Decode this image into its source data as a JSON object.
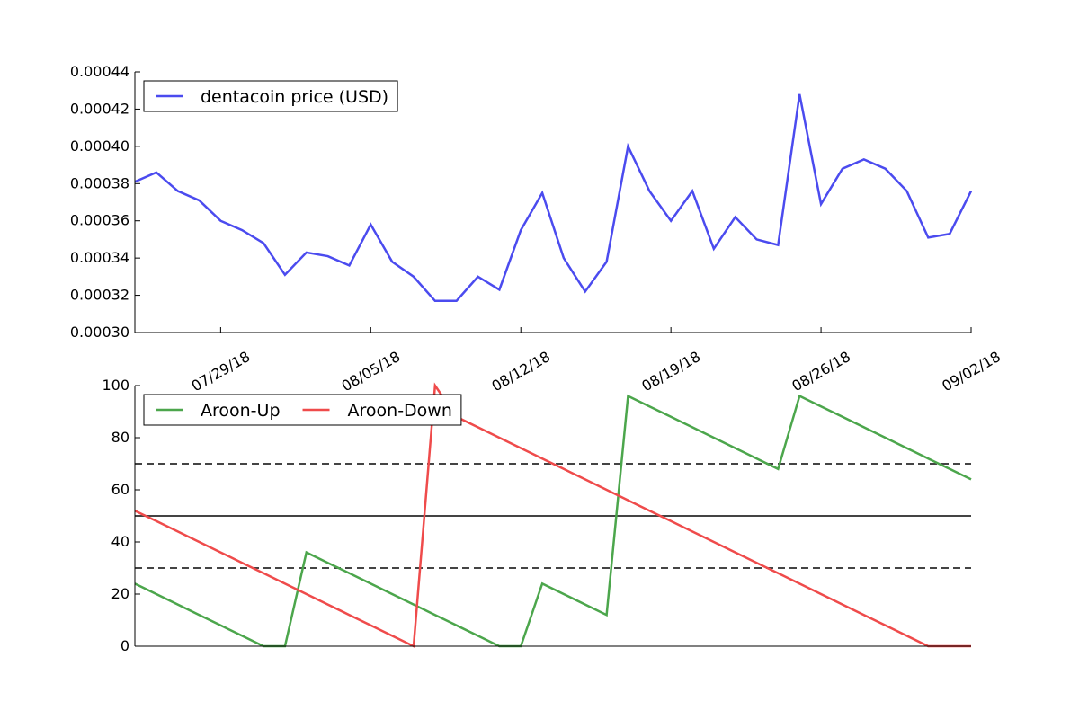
{
  "chart_data": [
    {
      "type": "line",
      "title": "",
      "xlabel": "",
      "ylabel": "",
      "x": [
        "2018-07-25",
        "2018-07-26",
        "2018-07-27",
        "2018-07-28",
        "2018-07-29",
        "2018-07-30",
        "2018-07-31",
        "2018-08-01",
        "2018-08-02",
        "2018-08-03",
        "2018-08-04",
        "2018-08-05",
        "2018-08-06",
        "2018-08-07",
        "2018-08-08",
        "2018-08-09",
        "2018-08-10",
        "2018-08-11",
        "2018-08-12",
        "2018-08-13",
        "2018-08-14",
        "2018-08-15",
        "2018-08-16",
        "2018-08-17",
        "2018-08-18",
        "2018-08-19",
        "2018-08-20",
        "2018-08-21",
        "2018-08-22",
        "2018-08-23",
        "2018-08-24",
        "2018-08-25",
        "2018-08-26",
        "2018-08-27",
        "2018-08-28",
        "2018-08-29",
        "2018-08-30",
        "2018-08-31",
        "2018-09-01",
        "2018-09-02"
      ],
      "xlim": [
        "2018-07-25",
        "2018-09-02"
      ],
      "xticks": [
        "2018-07-29",
        "2018-08-05",
        "2018-08-12",
        "2018-08-19",
        "2018-08-26",
        "2018-09-02"
      ],
      "xtick_labels": [
        "07/29/18",
        "08/05/18",
        "08/12/18",
        "08/19/18",
        "08/26/18",
        "09/02/18"
      ],
      "ylim": [
        0.0003,
        0.00044
      ],
      "yticks": [
        0.0003,
        0.00032,
        0.00034,
        0.00036,
        0.00038,
        0.0004,
        0.00042,
        0.00044
      ],
      "ytick_labels": [
        "0.00030",
        "0.00032",
        "0.00034",
        "0.00036",
        "0.00038",
        "0.00040",
        "0.00042",
        "0.00044"
      ],
      "legend_position": "top-left",
      "grid": false,
      "series": [
        {
          "name": "dentacoin price (USD)",
          "color": "#4b4bef",
          "values": [
            0.000381,
            0.000386,
            0.000376,
            0.000371,
            0.00036,
            0.000355,
            0.000348,
            0.000331,
            0.000343,
            0.000341,
            0.000336,
            0.000358,
            0.000338,
            0.00033,
            0.000317,
            0.000317,
            0.00033,
            0.000323,
            0.000355,
            0.000375,
            0.00034,
            0.000322,
            0.000338,
            0.0004,
            0.000376,
            0.00036,
            0.000376,
            0.000345,
            0.000362,
            0.00035,
            0.000347,
            0.000428,
            0.000369,
            0.000388,
            0.000393,
            0.000388,
            0.000376,
            0.000351,
            0.000353,
            0.000376
          ]
        }
      ]
    },
    {
      "type": "line",
      "title": "",
      "xlabel": "",
      "ylabel": "",
      "x": [
        "2018-07-25",
        "2018-07-26",
        "2018-07-27",
        "2018-07-28",
        "2018-07-29",
        "2018-07-30",
        "2018-07-31",
        "2018-08-01",
        "2018-08-02",
        "2018-08-03",
        "2018-08-04",
        "2018-08-05",
        "2018-08-06",
        "2018-08-07",
        "2018-08-08",
        "2018-08-09",
        "2018-08-10",
        "2018-08-11",
        "2018-08-12",
        "2018-08-13",
        "2018-08-14",
        "2018-08-15",
        "2018-08-16",
        "2018-08-17",
        "2018-08-18",
        "2018-08-19",
        "2018-08-20",
        "2018-08-21",
        "2018-08-22",
        "2018-08-23",
        "2018-08-24",
        "2018-08-25",
        "2018-08-26",
        "2018-08-27",
        "2018-08-28",
        "2018-08-29",
        "2018-08-30",
        "2018-08-31",
        "2018-09-01",
        "2018-09-02"
      ],
      "xlim": [
        "2018-07-25",
        "2018-09-02"
      ],
      "ylim": [
        0,
        100
      ],
      "yticks": [
        0,
        20,
        40,
        60,
        80,
        100
      ],
      "ytick_labels": [
        "0",
        "20",
        "40",
        "60",
        "80",
        "100"
      ],
      "legend_position": "top-left",
      "grid": false,
      "series": [
        {
          "name": "Aroon-Up",
          "color": "#4ca64c",
          "values": [
            24,
            20,
            16,
            12,
            8,
            4,
            0,
            0,
            36,
            32,
            28,
            24,
            20,
            16,
            12,
            8,
            4,
            0,
            0,
            24,
            20,
            16,
            12,
            96,
            92,
            88,
            84,
            80,
            76,
            72,
            68,
            96,
            92,
            88,
            84,
            80,
            76,
            72,
            68,
            64
          ]
        },
        {
          "name": "Aroon-Down",
          "color": "#ef4b4b",
          "values": [
            52,
            48,
            44,
            40,
            36,
            32,
            28,
            24,
            20,
            16,
            12,
            8,
            4,
            0,
            100,
            88,
            84,
            80,
            76,
            72,
            68,
            64,
            60,
            56,
            52,
            48,
            44,
            40,
            36,
            32,
            28,
            24,
            20,
            16,
            12,
            8,
            4,
            0,
            0,
            0
          ]
        }
      ],
      "reference_lines": [
        {
          "y": 70,
          "style": "dashed",
          "color": "#444444"
        },
        {
          "y": 50,
          "style": "solid",
          "color": "#444444"
        },
        {
          "y": 30,
          "style": "dashed",
          "color": "#444444"
        }
      ]
    }
  ]
}
